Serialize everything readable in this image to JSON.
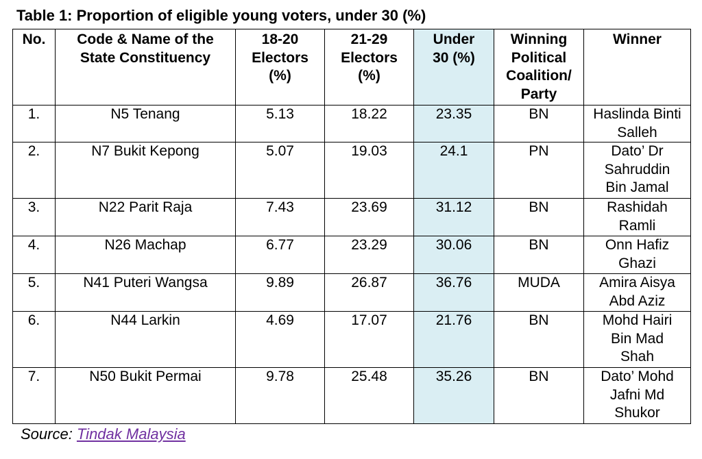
{
  "title": "Table 1: Proportion of eligible young voters, under 30 (%)",
  "table": {
    "headers": [
      "No.",
      "Code & Name of the State Constituency",
      "18-20 Electors (%)",
      "21-29 Electors (%)",
      "Under 30 (%)",
      "Winning Political Coalition/ Party",
      "Winner"
    ],
    "highlight_color": "#daeef3",
    "rows": [
      {
        "no": "1.",
        "constituency": "N5 Tenang",
        "e18_20": "5.13",
        "e21_29": "18.22",
        "under30": "23.35",
        "party": "BN",
        "winner": "Haslinda Binti Salleh"
      },
      {
        "no": "2.",
        "constituency": "N7 Bukit Kepong",
        "e18_20": "5.07",
        "e21_29": "19.03",
        "under30": "24.1",
        "party": "PN",
        "winner": "Dato’ Dr Sahruddin Bin Jamal"
      },
      {
        "no": "3.",
        "constituency": "N22 Parit Raja",
        "e18_20": "7.43",
        "e21_29": "23.69",
        "under30": "31.12",
        "party": "BN",
        "winner": "Rashidah Ramli"
      },
      {
        "no": "4.",
        "constituency": "N26 Machap",
        "e18_20": "6.77",
        "e21_29": "23.29",
        "under30": "30.06",
        "party": "BN",
        "winner": "Onn Hafiz Ghazi"
      },
      {
        "no": "5.",
        "constituency": "N41 Puteri Wangsa",
        "e18_20": "9.89",
        "e21_29": "26.87",
        "under30": "36.76",
        "party": "MUDA",
        "winner": "Amira Aisya Abd Aziz"
      },
      {
        "no": "6.",
        "constituency": "N44 Larkin",
        "e18_20": "4.69",
        "e21_29": "17.07",
        "under30": "21.76",
        "party": "BN",
        "winner": "Mohd Hairi Bin Mad Shah"
      },
      {
        "no": "7.",
        "constituency": "N50 Bukit Permai",
        "e18_20": "9.78",
        "e21_29": "25.48",
        "under30": "35.26",
        "party": "BN",
        "winner": "Dato’ Mohd Jafni Md Shukor"
      }
    ]
  },
  "source": {
    "label": "Source: ",
    "link_text": "Tindak Malaysia",
    "link_color": "#7030a0"
  }
}
